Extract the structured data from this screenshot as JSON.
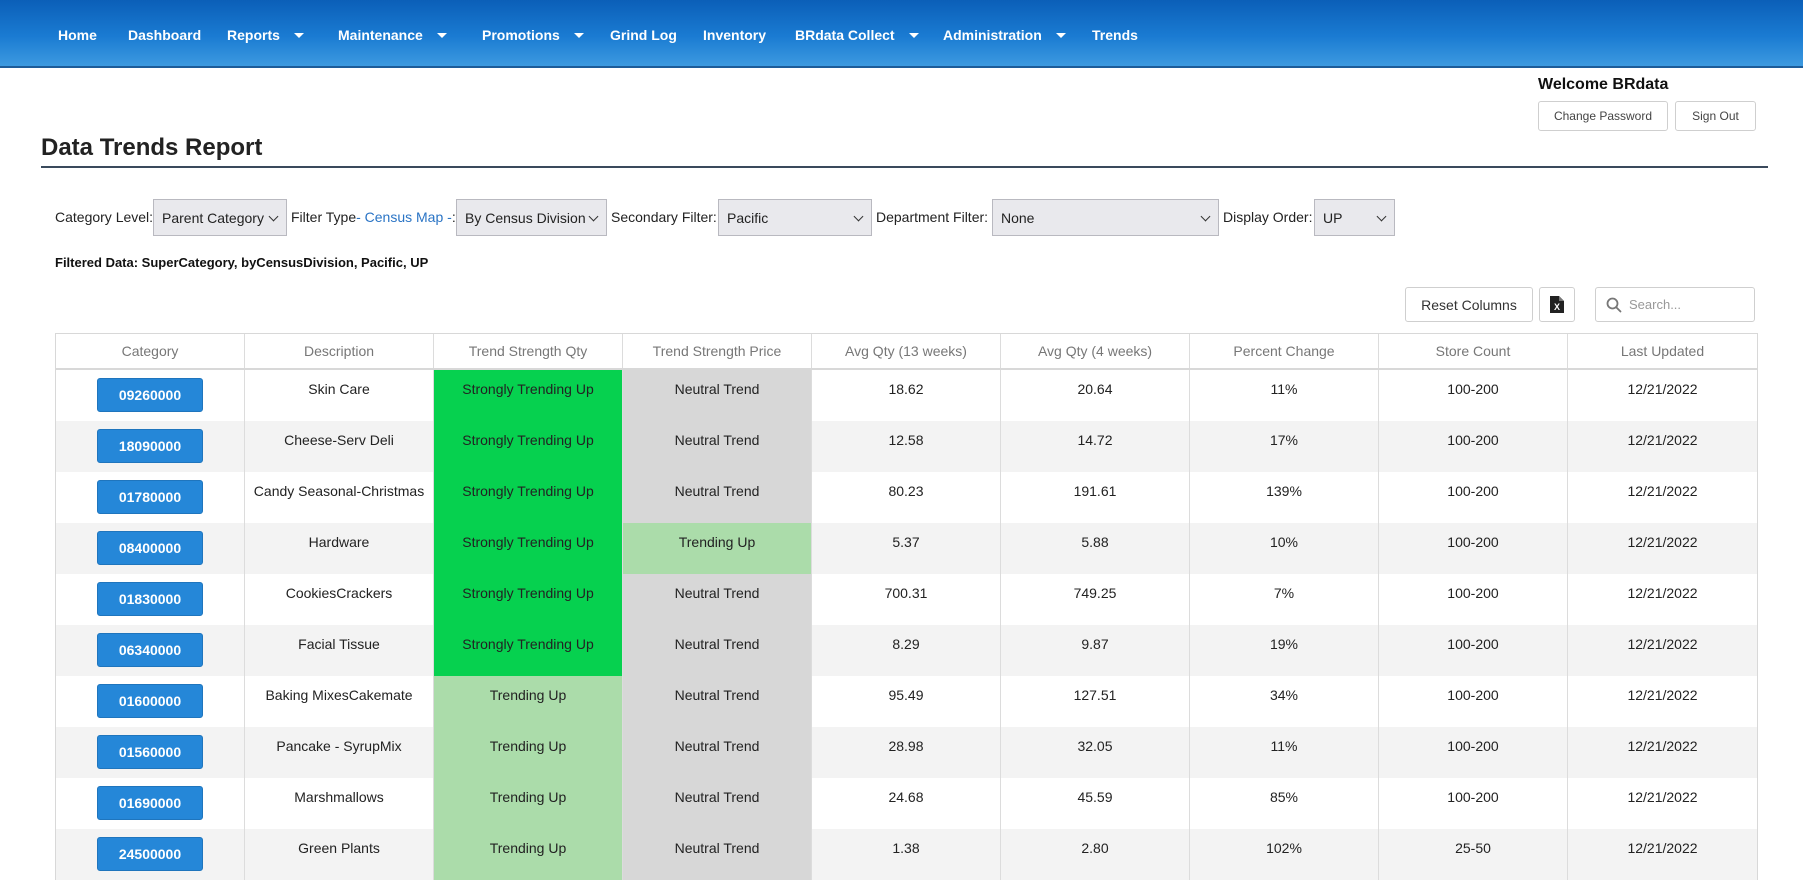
{
  "nav": {
    "items": [
      {
        "label": "Home",
        "dropdown": false
      },
      {
        "label": "Dashboard",
        "dropdown": false
      },
      {
        "label": "Reports",
        "dropdown": true
      },
      {
        "label": "Maintenance",
        "dropdown": true
      },
      {
        "label": "Promotions",
        "dropdown": true
      },
      {
        "label": "Grind Log",
        "dropdown": false
      },
      {
        "label": "Inventory",
        "dropdown": false
      },
      {
        "label": "BRdata Collect",
        "dropdown": true
      },
      {
        "label": "Administration",
        "dropdown": true
      },
      {
        "label": "Trends",
        "dropdown": false
      }
    ]
  },
  "user": {
    "welcome": "Welcome BRdata",
    "change_password": "Change Password",
    "sign_out": "Sign Out"
  },
  "page": {
    "title": "Data Trends Report"
  },
  "filters": {
    "category_level_label": "Category Level:",
    "category_level_value": "Parent Category",
    "filter_type_label": "Filter Type",
    "filter_type_link": "- Census Map -",
    "filter_type_colon": ":",
    "filter_type_value": "By Census Division",
    "secondary_label": "Secondary Filter:",
    "secondary_value": "Pacific",
    "department_label": "Department Filter:",
    "department_value": "None",
    "display_order_label": "Display Order:",
    "display_order_value": "UP"
  },
  "filtered_data": "Filtered Data: SuperCategory, byCensusDivision, Pacific, UP",
  "toolbar": {
    "reset_columns": "Reset Columns",
    "search_placeholder": "Search...",
    "excel_icon": "excel-export-icon",
    "search_icon": "search-icon"
  },
  "colors": {
    "strongly_trending_up": "#06d14f",
    "trending_up": "#abdcaa",
    "neutral_trend": "#d7d7d7",
    "category_button": "#2587d8"
  },
  "table": {
    "columns": [
      "Category",
      "Description",
      "Trend Strength Qty",
      "Trend Strength Price",
      "Avg Qty (13 weeks)",
      "Avg Qty (4 weeks)",
      "Percent Change",
      "Store Count",
      "Last Updated"
    ],
    "rows": [
      {
        "category": "09260000",
        "description": "Skin Care",
        "trend_qty": "Strongly Trending Up",
        "trend_price": "Neutral Trend",
        "avg13": "18.62",
        "avg4": "20.64",
        "pct": "11%",
        "stores": "100-200",
        "updated": "12/21/2022"
      },
      {
        "category": "18090000",
        "description": "Cheese-Serv Deli",
        "trend_qty": "Strongly Trending Up",
        "trend_price": "Neutral Trend",
        "avg13": "12.58",
        "avg4": "14.72",
        "pct": "17%",
        "stores": "100-200",
        "updated": "12/21/2022"
      },
      {
        "category": "01780000",
        "description": "Candy Seasonal-Christmas",
        "trend_qty": "Strongly Trending Up",
        "trend_price": "Neutral Trend",
        "avg13": "80.23",
        "avg4": "191.61",
        "pct": "139%",
        "stores": "100-200",
        "updated": "12/21/2022"
      },
      {
        "category": "08400000",
        "description": "Hardware",
        "trend_qty": "Strongly Trending Up",
        "trend_price": "Trending Up",
        "avg13": "5.37",
        "avg4": "5.88",
        "pct": "10%",
        "stores": "100-200",
        "updated": "12/21/2022"
      },
      {
        "category": "01830000",
        "description": "CookiesCrackers",
        "trend_qty": "Strongly Trending Up",
        "trend_price": "Neutral Trend",
        "avg13": "700.31",
        "avg4": "749.25",
        "pct": "7%",
        "stores": "100-200",
        "updated": "12/21/2022"
      },
      {
        "category": "06340000",
        "description": "Facial Tissue",
        "trend_qty": "Strongly Trending Up",
        "trend_price": "Neutral Trend",
        "avg13": "8.29",
        "avg4": "9.87",
        "pct": "19%",
        "stores": "100-200",
        "updated": "12/21/2022"
      },
      {
        "category": "01600000",
        "description": "Baking MixesCakemate",
        "trend_qty": "Trending Up",
        "trend_price": "Neutral Trend",
        "avg13": "95.49",
        "avg4": "127.51",
        "pct": "34%",
        "stores": "100-200",
        "updated": "12/21/2022"
      },
      {
        "category": "01560000",
        "description": "Pancake - SyrupMix",
        "trend_qty": "Trending Up",
        "trend_price": "Neutral Trend",
        "avg13": "28.98",
        "avg4": "32.05",
        "pct": "11%",
        "stores": "100-200",
        "updated": "12/21/2022"
      },
      {
        "category": "01690000",
        "description": "Marshmallows",
        "trend_qty": "Trending Up",
        "trend_price": "Neutral Trend",
        "avg13": "24.68",
        "avg4": "45.59",
        "pct": "85%",
        "stores": "100-200",
        "updated": "12/21/2022"
      },
      {
        "category": "24500000",
        "description": "Green Plants",
        "trend_qty": "Trending Up",
        "trend_price": "Neutral Trend",
        "avg13": "1.38",
        "avg4": "2.80",
        "pct": "102%",
        "stores": "25-50",
        "updated": "12/21/2022"
      }
    ]
  }
}
